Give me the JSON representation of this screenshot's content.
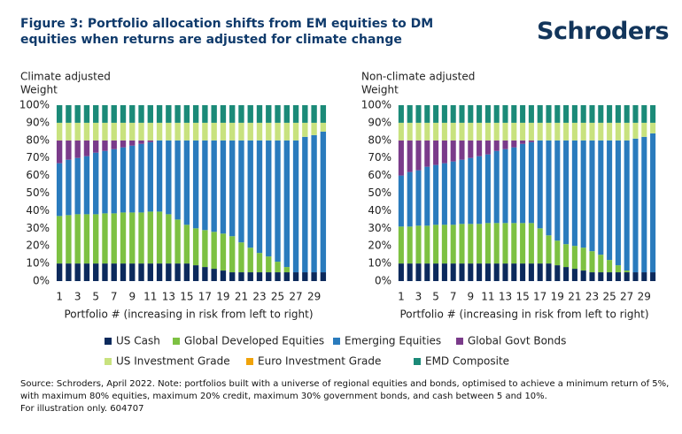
{
  "header": {
    "title": "Figure 3: Portfolio allocation shifts from EM equities to DM equities when returns are adjusted for climate change",
    "logo": "Schroders"
  },
  "chart_data": [
    {
      "type": "bar",
      "stacked": true,
      "title": "Climate adjusted",
      "y_label": "Weight",
      "x_label": "Portfolio # (increasing in risk from left to right)",
      "categories": [
        "1",
        null,
        "3",
        null,
        "5",
        null,
        "7",
        null,
        "9",
        null,
        "11",
        null,
        "13",
        null,
        "15",
        null,
        "17",
        null,
        "19",
        null,
        "21",
        null,
        "23",
        null,
        "25",
        null,
        "27",
        null,
        "29",
        null
      ],
      "ylim": [
        0,
        100
      ],
      "yticks": [
        {
          "value": 0,
          "label": "0%"
        },
        {
          "value": 10,
          "label": "10%"
        },
        {
          "value": 20,
          "label": "20%"
        },
        {
          "value": 30,
          "label": "30%"
        },
        {
          "value": 40,
          "label": "40%"
        },
        {
          "value": 50,
          "label": "50%"
        },
        {
          "value": 60,
          "label": "60%"
        },
        {
          "value": 70,
          "label": "70%"
        },
        {
          "value": 80,
          "label": "80%"
        },
        {
          "value": 90,
          "label": "90%"
        },
        {
          "value": 100,
          "label": "100%"
        }
      ],
      "series": [
        {
          "name": "US Cash",
          "color": "#0c2a5c",
          "values": [
            10,
            10,
            10,
            10,
            10,
            10,
            10,
            10,
            10,
            10,
            10,
            10,
            10,
            10,
            10,
            9,
            8,
            7,
            6,
            5,
            5,
            5,
            5,
            5,
            5,
            5,
            5,
            5,
            5,
            5
          ]
        },
        {
          "name": "Global Developed Equities",
          "color": "#7dc142",
          "values": [
            27,
            27.5,
            28,
            28,
            28,
            28.5,
            28.5,
            29,
            29,
            29,
            29.5,
            29.5,
            28,
            25,
            22,
            21,
            21,
            21,
            21,
            20.5,
            17,
            14,
            11,
            9,
            6,
            3,
            0,
            0,
            0,
            0
          ]
        },
        {
          "name": "Emerging Equities",
          "color": "#2a7bbd",
          "values": [
            30,
            31.5,
            32,
            33,
            35,
            35.5,
            36.5,
            37,
            38,
            39,
            39.5,
            40.5,
            42,
            45,
            48,
            50,
            51,
            52,
            53,
            54.5,
            58,
            61,
            64,
            66,
            69,
            72,
            75,
            77,
            78,
            80
          ]
        },
        {
          "name": "Global Govt Bonds",
          "color": "#7a3b8a",
          "values": [
            13,
            11,
            10,
            9,
            7,
            6,
            5,
            4,
            3,
            2,
            1,
            0,
            0,
            0,
            0,
            0,
            0,
            0,
            0,
            0,
            0,
            0,
            0,
            0,
            0,
            0,
            0,
            0,
            0,
            0
          ]
        },
        {
          "name": "US Investment Grade",
          "color": "#c8e27e",
          "values": [
            10,
            10,
            10,
            10,
            10,
            10,
            10,
            10,
            10,
            10,
            10,
            10,
            10,
            10,
            10,
            10,
            10,
            10,
            10,
            10,
            10,
            10,
            10,
            10,
            10,
            10,
            10,
            8,
            7,
            5
          ]
        },
        {
          "name": "Euro Investment Grade",
          "color": "#f0a30a",
          "values": [
            0,
            0,
            0,
            0,
            0,
            0,
            0,
            0,
            0,
            0,
            0,
            0,
            0,
            0,
            0,
            0,
            0,
            0,
            0,
            0,
            0,
            0,
            0,
            0,
            0,
            0,
            0,
            0,
            0,
            0
          ]
        },
        {
          "name": "EMD Composite",
          "color": "#1b8a78",
          "values": [
            10,
            10,
            10,
            10,
            10,
            10,
            10,
            10,
            10,
            10,
            10,
            10,
            10,
            10,
            10,
            10,
            10,
            10,
            10,
            10,
            10,
            10,
            10,
            10,
            10,
            10,
            10,
            10,
            10,
            10
          ]
        }
      ]
    },
    {
      "type": "bar",
      "stacked": true,
      "title": "Non-climate adjusted",
      "y_label": "Weight",
      "x_label": "Portfolio # (increasing in risk from left to right)",
      "categories": [
        "1",
        null,
        "3",
        null,
        "5",
        null,
        "7",
        null,
        "9",
        null,
        "11",
        null,
        "13",
        null,
        "15",
        null,
        "17",
        null,
        "19",
        null,
        "21",
        null,
        "23",
        null,
        "25",
        null,
        "27",
        null,
        "29",
        null
      ],
      "ylim": [
        0,
        100
      ],
      "yticks": [
        {
          "value": 0,
          "label": "0%"
        },
        {
          "value": 10,
          "label": "10%"
        },
        {
          "value": 20,
          "label": "20%"
        },
        {
          "value": 30,
          "label": "30%"
        },
        {
          "value": 40,
          "label": "40%"
        },
        {
          "value": 50,
          "label": "50%"
        },
        {
          "value": 60,
          "label": "60%"
        },
        {
          "value": 70,
          "label": "70%"
        },
        {
          "value": 80,
          "label": "80%"
        },
        {
          "value": 90,
          "label": "90%"
        },
        {
          "value": 100,
          "label": "100%"
        }
      ],
      "series": [
        {
          "color": "#0c2a5c",
          "values": [
            10,
            10,
            10,
            10,
            10,
            10,
            10,
            10,
            10,
            10,
            10,
            10,
            10,
            10,
            10,
            10,
            10,
            10,
            9,
            8,
            7,
            6,
            5,
            5,
            5,
            5,
            5,
            5,
            5,
            5
          ]
        },
        {
          "color": "#7dc142",
          "values": [
            21,
            21,
            21.5,
            21.5,
            22,
            22,
            22,
            22.5,
            22.5,
            22.5,
            23,
            23,
            23,
            23,
            23,
            23,
            20,
            16,
            14,
            13,
            13,
            13,
            12,
            10,
            7,
            4,
            1,
            0,
            0,
            0
          ]
        },
        {
          "color": "#2a7bbd",
          "values": [
            29,
            31,
            31.5,
            33.5,
            34,
            35,
            36,
            36.5,
            37.5,
            38.5,
            39,
            41,
            42,
            43,
            45,
            46,
            50,
            54,
            57,
            59,
            60,
            61,
            63,
            65,
            68,
            71,
            74,
            76,
            77,
            79
          ]
        },
        {
          "color": "#7a3b8a",
          "values": [
            20,
            18,
            17,
            15,
            14,
            13,
            12,
            11,
            10,
            9,
            8,
            6,
            5,
            4,
            2,
            1,
            0,
            0,
            0,
            0,
            0,
            0,
            0,
            0,
            0,
            0,
            0,
            0,
            0,
            0
          ]
        },
        {
          "color": "#c8e27e",
          "values": [
            10,
            10,
            10,
            10,
            10,
            10,
            10,
            10,
            10,
            10,
            10,
            10,
            10,
            10,
            10,
            10,
            10,
            10,
            10,
            10,
            10,
            10,
            10,
            10,
            10,
            10,
            10,
            9,
            8,
            6
          ]
        },
        {
          "color": "#f0a30a",
          "values": [
            0,
            0,
            0,
            0,
            0,
            0,
            0,
            0,
            0,
            0,
            0,
            0,
            0,
            0,
            0,
            0,
            0,
            0,
            0,
            0,
            0,
            0,
            0,
            0,
            0,
            0,
            0,
            0,
            0,
            0
          ]
        },
        {
          "color": "#1b8a78",
          "values": [
            10,
            10,
            10,
            10,
            10,
            10,
            10,
            10,
            10,
            10,
            10,
            10,
            10,
            10,
            10,
            10,
            10,
            10,
            10,
            10,
            10,
            10,
            10,
            10,
            10,
            10,
            10,
            10,
            10,
            10
          ]
        }
      ]
    }
  ],
  "footnote": [
    "Source: Schroders, April 2022. Note: portfolios built with a universe of regional equities and bonds, optimised to achieve a minimum return of 5%, with maximum 80% equities, maximum 20% credit, maximum 30% government bonds, and cash between 5 and 10%.",
    "For illustration only. 604707"
  ]
}
